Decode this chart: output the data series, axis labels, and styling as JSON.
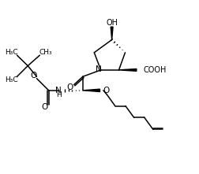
{
  "bg": "#ffffff",
  "lc": "#000000",
  "lw": 1.1,
  "fs": 7.0,
  "fw": 2.53,
  "fh": 2.21,
  "dpi": 100,
  "xlim": [
    0,
    10.5
  ],
  "ylim": [
    0,
    9.2
  ]
}
